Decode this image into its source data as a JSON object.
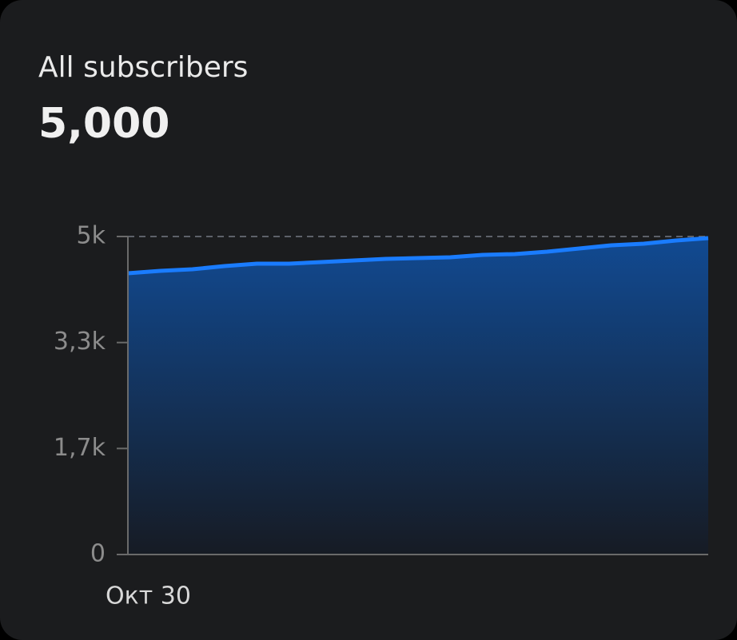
{
  "header": {
    "title": "All subscribers",
    "total": "5,000"
  },
  "chart_data": {
    "type": "area",
    "categories": [
      "Окт 30",
      null,
      null,
      null,
      null,
      null,
      null,
      null,
      null,
      null,
      null,
      null,
      null,
      null,
      null,
      null,
      null,
      null,
      null
    ],
    "series": [
      {
        "color": "#1a7cff",
        "values": [
          4422,
          4460,
          4485,
          4535,
          4573,
          4573,
          4598,
          4623,
          4648,
          4661,
          4673,
          4711,
          4724,
          4761,
          4812,
          4862,
          4887,
          4937,
          4975
        ]
      }
    ],
    "ylim": [
      0,
      5000
    ],
    "yticks": [
      0,
      {
        "value": 1667,
        "label": "1,7k"
      },
      {
        "value": 3333,
        "label": "3,3k"
      },
      {
        "value": 5000,
        "label": "5k"
      }
    ],
    "grid": true
  }
}
